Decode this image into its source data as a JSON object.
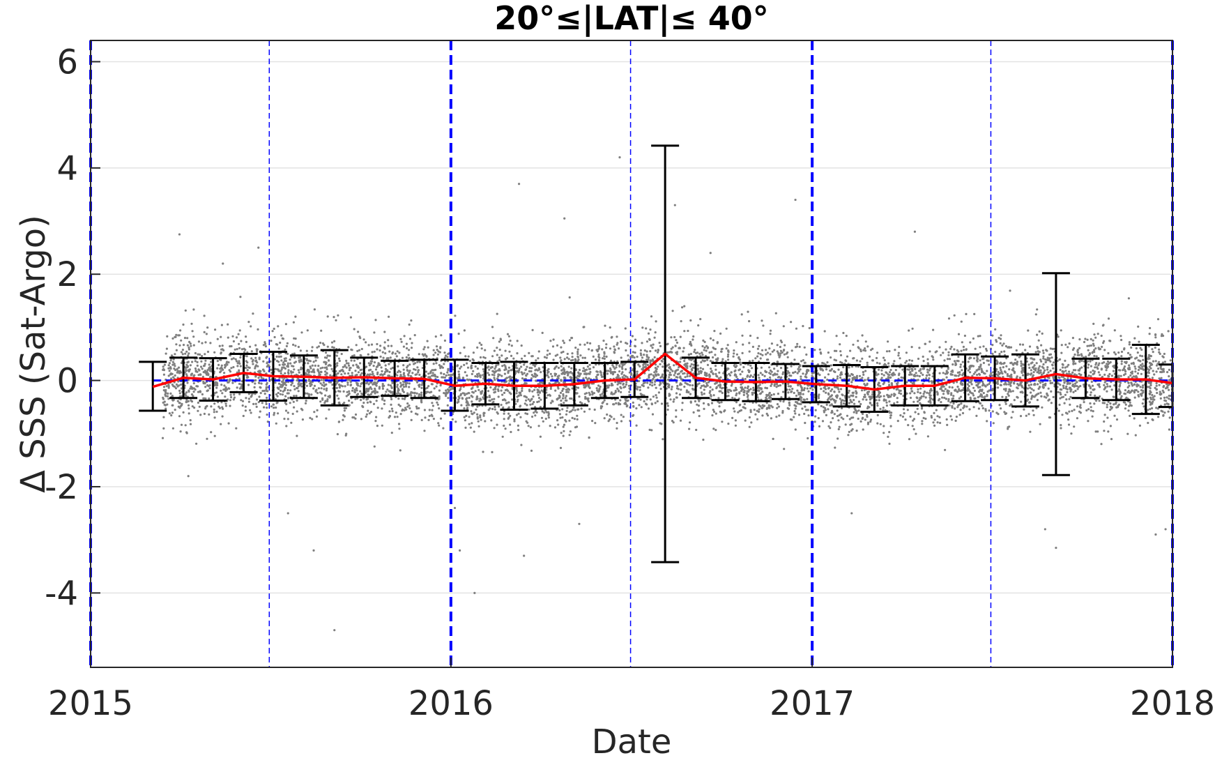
{
  "chart_data": {
    "type": "scatter",
    "title": "20°≤|LAT|≤ 40°",
    "xlabel": "Date",
    "ylabel": "Δ SSS (Sat-Argo)",
    "xlim": [
      "2015-01-01",
      "2018-01-01"
    ],
    "ylim": [
      -5.4,
      6.4
    ],
    "x_ticks": [
      "2015",
      "2016",
      "2017",
      "2018"
    ],
    "y_ticks": [
      -4,
      -2,
      0,
      2,
      4,
      6
    ],
    "grid": "horizontal",
    "vertical_markers": {
      "year_boundaries": [
        "2015-01-01",
        "2016-01-01",
        "2017-01-01",
        "2018-01-01"
      ],
      "mid_year": [
        "2015-07-01",
        "2016-07-01",
        "2017-07-01"
      ],
      "color": "#0000ff"
    },
    "zero_line": {
      "y": 0,
      "color": "#0000ff"
    },
    "scatter": {
      "description_color": "#7f7f7f",
      "x_range": [
        "2015-03-15",
        "2018-01-01"
      ],
      "typical_spread": 0.5,
      "outliers": [
        {
          "x": "2015-04-01",
          "y": 2.75
        },
        {
          "x": "2015-05-15",
          "y": 2.2
        },
        {
          "x": "2015-06-20",
          "y": 2.5
        },
        {
          "x": "2016-03-10",
          "y": 3.7
        },
        {
          "x": "2016-04-25",
          "y": 3.05
        },
        {
          "x": "2016-06-20",
          "y": 4.2
        },
        {
          "x": "2016-08-15",
          "y": 3.3
        },
        {
          "x": "2016-09-20",
          "y": 2.4
        },
        {
          "x": "2016-12-15",
          "y": 3.4
        },
        {
          "x": "2017-04-15",
          "y": 2.8
        },
        {
          "x": "2015-07-20",
          "y": -2.5
        },
        {
          "x": "2015-08-15",
          "y": -3.2
        },
        {
          "x": "2015-09-05",
          "y": -4.7
        },
        {
          "x": "2016-01-10",
          "y": -3.2
        },
        {
          "x": "2016-01-25",
          "y": -4.0
        },
        {
          "x": "2016-03-15",
          "y": -3.3
        },
        {
          "x": "2016-05-10",
          "y": -2.7
        },
        {
          "x": "2017-02-10",
          "y": -2.5
        },
        {
          "x": "2017-08-25",
          "y": -2.8
        },
        {
          "x": "2017-09-05",
          "y": -3.15
        },
        {
          "x": "2017-12-15",
          "y": -2.9
        },
        {
          "x": "2016-01-05",
          "y": -2.4
        },
        {
          "x": "2015-04-10",
          "y": -1.8
        },
        {
          "x": "2017-12-25",
          "y": -2.8
        }
      ]
    },
    "series": [
      {
        "name": "",
        "type": "line-errorbar",
        "color": "#ff0000",
        "errorbar_color": "#000000",
        "points": [
          {
            "x": "2015-03-05",
            "y": -0.12,
            "lo": -0.57,
            "hi": 0.35
          },
          {
            "x": "2015-04-05",
            "y": 0.05,
            "lo": -0.33,
            "hi": 0.43
          },
          {
            "x": "2015-05-05",
            "y": 0.02,
            "lo": -0.38,
            "hi": 0.42
          },
          {
            "x": "2015-06-05",
            "y": 0.14,
            "lo": -0.22,
            "hi": 0.5
          },
          {
            "x": "2015-07-05",
            "y": 0.08,
            "lo": -0.38,
            "hi": 0.54
          },
          {
            "x": "2015-08-05",
            "y": 0.07,
            "lo": -0.33,
            "hi": 0.47
          },
          {
            "x": "2015-09-05",
            "y": 0.05,
            "lo": -0.47,
            "hi": 0.57
          },
          {
            "x": "2015-10-05",
            "y": 0.06,
            "lo": -0.31,
            "hi": 0.43
          },
          {
            "x": "2015-11-05",
            "y": 0.04,
            "lo": -0.29,
            "hi": 0.37
          },
          {
            "x": "2015-12-05",
            "y": 0.03,
            "lo": -0.33,
            "hi": 0.39
          },
          {
            "x": "2016-01-05",
            "y": -0.1,
            "lo": -0.57,
            "hi": 0.39
          },
          {
            "x": "2016-02-05",
            "y": -0.06,
            "lo": -0.45,
            "hi": 0.33
          },
          {
            "x": "2016-03-05",
            "y": -0.1,
            "lo": -0.55,
            "hi": 0.35
          },
          {
            "x": "2016-04-05",
            "y": -0.1,
            "lo": -0.53,
            "hi": 0.33
          },
          {
            "x": "2016-05-05",
            "y": -0.07,
            "lo": -0.47,
            "hi": 0.33
          },
          {
            "x": "2016-06-05",
            "y": 0.0,
            "lo": -0.33,
            "hi": 0.33
          },
          {
            "x": "2016-07-05",
            "y": 0.02,
            "lo": -0.31,
            "hi": 0.35
          },
          {
            "x": "2016-08-05",
            "y": 0.5,
            "lo": -3.42,
            "hi": 4.42
          },
          {
            "x": "2016-09-05",
            "y": 0.05,
            "lo": -0.33,
            "hi": 0.43
          },
          {
            "x": "2016-10-05",
            "y": -0.02,
            "lo": -0.37,
            "hi": 0.33
          },
          {
            "x": "2016-11-05",
            "y": -0.03,
            "lo": -0.39,
            "hi": 0.33
          },
          {
            "x": "2016-12-05",
            "y": -0.02,
            "lo": -0.35,
            "hi": 0.31
          },
          {
            "x": "2017-01-05",
            "y": -0.07,
            "lo": -0.41,
            "hi": 0.27
          },
          {
            "x": "2017-02-05",
            "y": -0.1,
            "lo": -0.49,
            "hi": 0.29
          },
          {
            "x": "2017-03-05",
            "y": -0.17,
            "lo": -0.59,
            "hi": 0.25
          },
          {
            "x": "2017-04-05",
            "y": -0.1,
            "lo": -0.47,
            "hi": 0.27
          },
          {
            "x": "2017-05-05",
            "y": -0.1,
            "lo": -0.47,
            "hi": 0.27
          },
          {
            "x": "2017-06-05",
            "y": 0.05,
            "lo": -0.39,
            "hi": 0.49
          },
          {
            "x": "2017-07-05",
            "y": 0.04,
            "lo": -0.37,
            "hi": 0.45
          },
          {
            "x": "2017-08-05",
            "y": 0.0,
            "lo": -0.49,
            "hi": 0.49
          },
          {
            "x": "2017-09-05",
            "y": 0.12,
            "lo": -1.78,
            "hi": 2.02
          },
          {
            "x": "2017-10-05",
            "y": 0.04,
            "lo": -0.33,
            "hi": 0.41
          },
          {
            "x": "2017-11-05",
            "y": 0.02,
            "lo": -0.37,
            "hi": 0.41
          },
          {
            "x": "2017-12-05",
            "y": 0.02,
            "lo": -0.63,
            "hi": 0.67
          },
          {
            "x": "2018-01-01",
            "y": -0.05,
            "lo": -0.5,
            "hi": 0.3
          }
        ]
      }
    ]
  }
}
